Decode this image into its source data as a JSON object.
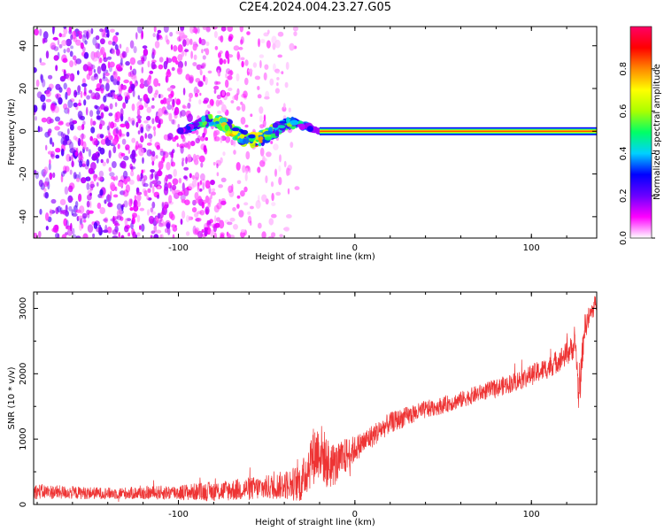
{
  "page": {
    "title": "C2E4.2024.004.23.27.G05"
  },
  "chart_data": [
    {
      "type": "heatmap",
      "title": "C2E4.2024.004.23.27.G05",
      "xlabel": "Height of straight line (km)",
      "ylabel": "Frequency (Hz)",
      "xlim": [
        -182,
        137
      ],
      "ylim": [
        -50,
        49
      ],
      "x_ticks": [
        -100,
        0,
        100
      ],
      "y_ticks": [
        -40,
        -20,
        0,
        20,
        40
      ],
      "grid": false,
      "colorbar": {
        "label": "Normalized spectral amplitude",
        "range": [
          0.0,
          1.0
        ],
        "ticks": [
          0.0,
          0.2,
          0.4,
          0.6,
          0.8
        ],
        "tick_labels": [
          "0.0",
          "0.2",
          "0.4",
          "0.6",
          "0.8"
        ],
        "colormap": [
          "#ffffff",
          "#ff00ff",
          "#6a00ff",
          "#0000ff",
          "#00d0ff",
          "#00ff66",
          "#aaff00",
          "#ffff00",
          "#ff8800",
          "#ff0000",
          "#ff0066"
        ]
      },
      "features": [
        {
          "name": "scattered noise",
          "x_range": [
            -182,
            -30
          ],
          "y_range": [
            -50,
            49
          ],
          "amplitude": 0.12
        },
        {
          "name": "wavy signal",
          "x_range": [
            -100,
            -20
          ],
          "y_center": 0,
          "amplitude": 0.5
        },
        {
          "name": "carrier line",
          "x_range": [
            -20,
            137
          ],
          "y": 0,
          "amplitude": 0.85
        }
      ]
    },
    {
      "type": "line",
      "xlabel": "Height of straight line (km)",
      "ylabel": "SNR (10 * v/v)",
      "xlim": [
        -182,
        137
      ],
      "ylim": [
        0,
        3250
      ],
      "x_ticks": [
        -100,
        0,
        100
      ],
      "y_ticks": [
        0,
        1000,
        2000,
        3000
      ],
      "grid": false,
      "color": "#ee3333",
      "series": [
        {
          "x": [
            -182,
            -160,
            -140,
            -120,
            -100,
            -80,
            -60,
            -50,
            -40,
            -30,
            -25,
            -20,
            -15,
            -10,
            -5,
            0,
            10,
            20,
            30,
            40,
            50,
            60,
            70,
            80,
            90,
            100,
            110,
            120,
            125,
            127,
            130,
            135,
            137
          ],
          "values": [
            200,
            180,
            170,
            175,
            185,
            200,
            240,
            260,
            300,
            330,
            700,
            850,
            600,
            620,
            750,
            850,
            1050,
            1250,
            1350,
            1450,
            1520,
            1600,
            1700,
            1780,
            1870,
            1980,
            2100,
            2300,
            2450,
            1600,
            2700,
            3000,
            3100
          ],
          "noise_amplitude": [
            120,
            100,
            90,
            100,
            120,
            150,
            180,
            190,
            220,
            300,
            450,
            450,
            400,
            300,
            280,
            200,
            180,
            160,
            150,
            140,
            130,
            130,
            130,
            140,
            150,
            160,
            170,
            190,
            200,
            300,
            200,
            150,
            150
          ]
        }
      ]
    }
  ]
}
